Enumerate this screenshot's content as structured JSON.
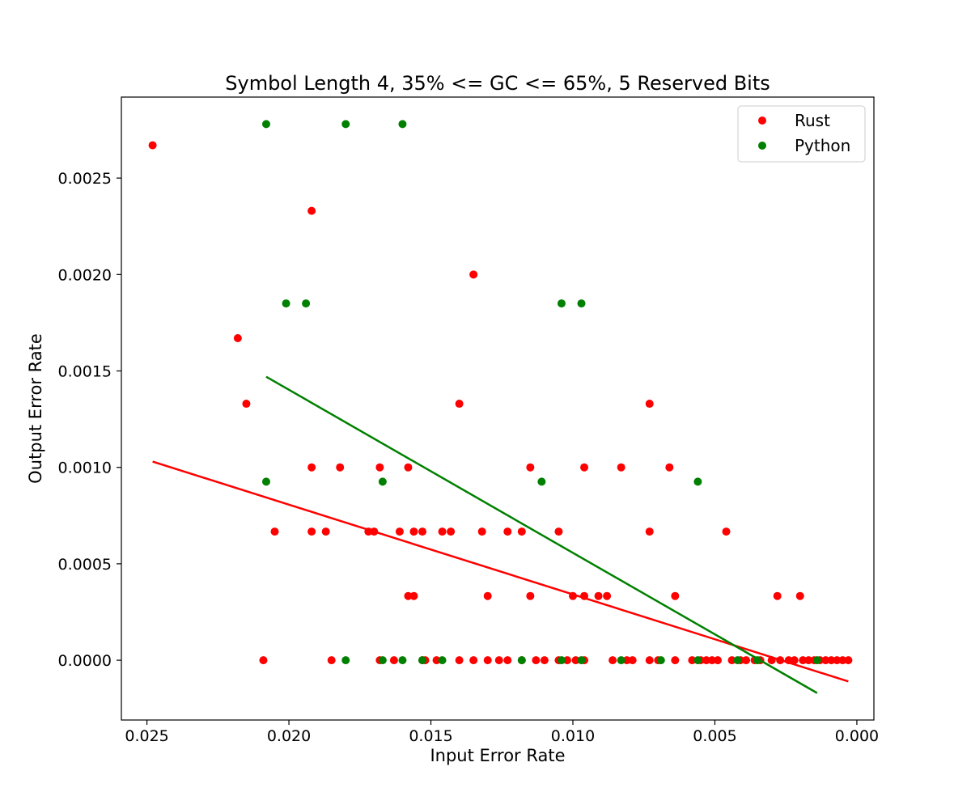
{
  "chart_data": {
    "type": "scatter",
    "title": "Symbol Length 4, 35% <= GC <= 65%, 5 Reserved Bits",
    "xlabel": "Input Error Rate",
    "ylabel": "Output Error Rate",
    "xlim": [
      0.0259,
      -0.0006
    ],
    "ylim": [
      -0.00031,
      0.00292
    ],
    "x_ticks": [
      0.025,
      0.02,
      0.015,
      0.01,
      0.005,
      0.0
    ],
    "x_tick_labels": [
      "0.025",
      "0.020",
      "0.015",
      "0.010",
      "0.005",
      "0.000"
    ],
    "y_ticks": [
      0.0,
      0.0005,
      0.001,
      0.0015,
      0.002,
      0.0025
    ],
    "y_tick_labels": [
      "0.0000",
      "0.0005",
      "0.0010",
      "0.0015",
      "0.0020",
      "0.0025"
    ],
    "legend_position": "top-right",
    "grid": false,
    "series": [
      {
        "name": "Rust",
        "color": "#ff0000",
        "points": [
          [
            0.0248,
            0.00267
          ],
          [
            0.0218,
            0.00167
          ],
          [
            0.0215,
            0.00133
          ],
          [
            0.0209,
            0.0
          ],
          [
            0.0205,
            0.000667
          ],
          [
            0.0192,
            0.00233
          ],
          [
            0.0192,
            0.001
          ],
          [
            0.0192,
            0.000667
          ],
          [
            0.0187,
            0.000667
          ],
          [
            0.0185,
            0.0
          ],
          [
            0.0182,
            0.001
          ],
          [
            0.0172,
            0.000667
          ],
          [
            0.017,
            0.000667
          ],
          [
            0.0168,
            0.001
          ],
          [
            0.0168,
            0.0
          ],
          [
            0.0163,
            0.0
          ],
          [
            0.0161,
            0.000667
          ],
          [
            0.0158,
            0.001
          ],
          [
            0.0158,
            0.000333
          ],
          [
            0.0156,
            0.000667
          ],
          [
            0.0156,
            0.000333
          ],
          [
            0.0153,
            0.000667
          ],
          [
            0.0153,
            0.0
          ],
          [
            0.0152,
            0.0
          ],
          [
            0.0148,
            0.0
          ],
          [
            0.0146,
            0.000667
          ],
          [
            0.0143,
            0.000667
          ],
          [
            0.014,
            0.00133
          ],
          [
            0.014,
            0.0
          ],
          [
            0.0135,
            0.002
          ],
          [
            0.0135,
            0.0
          ],
          [
            0.0132,
            0.000667
          ],
          [
            0.013,
            0.000333
          ],
          [
            0.013,
            0.0
          ],
          [
            0.0126,
            0.0
          ],
          [
            0.0123,
            0.000667
          ],
          [
            0.0123,
            0.0
          ],
          [
            0.0118,
            0.000667
          ],
          [
            0.0118,
            0.0
          ],
          [
            0.0115,
            0.001
          ],
          [
            0.0115,
            0.000333
          ],
          [
            0.0113,
            0.0
          ],
          [
            0.011,
            0.0
          ],
          [
            0.0105,
            0.000667
          ],
          [
            0.0105,
            0.0
          ],
          [
            0.0102,
            0.0
          ],
          [
            0.01,
            0.000333
          ],
          [
            0.0099,
            0.0
          ],
          [
            0.0096,
            0.001
          ],
          [
            0.0096,
            0.000333
          ],
          [
            0.0096,
            0.0
          ],
          [
            0.0091,
            0.000333
          ],
          [
            0.0088,
            0.000333
          ],
          [
            0.0086,
            0.0
          ],
          [
            0.0083,
            0.001
          ],
          [
            0.0081,
            0.0
          ],
          [
            0.0079,
            0.0
          ],
          [
            0.0073,
            0.00133
          ],
          [
            0.0073,
            0.000667
          ],
          [
            0.0073,
            0.0
          ],
          [
            0.007,
            0.0
          ],
          [
            0.0066,
            0.001
          ],
          [
            0.0064,
            0.000333
          ],
          [
            0.0064,
            0.0
          ],
          [
            0.0058,
            0.0
          ],
          [
            0.0055,
            0.0
          ],
          [
            0.0053,
            0.0
          ],
          [
            0.0051,
            0.0
          ],
          [
            0.0049,
            0.0
          ],
          [
            0.0046,
            0.000667
          ],
          [
            0.0044,
            0.0
          ],
          [
            0.0041,
            0.0
          ],
          [
            0.0039,
            0.0
          ],
          [
            0.0036,
            0.0
          ],
          [
            0.0034,
            0.0
          ],
          [
            0.003,
            0.0
          ],
          [
            0.0028,
            0.000333
          ],
          [
            0.0027,
            0.0
          ],
          [
            0.0024,
            0.0
          ],
          [
            0.0022,
            0.0
          ],
          [
            0.002,
            0.000333
          ],
          [
            0.0019,
            0.0
          ],
          [
            0.0017,
            0.0
          ],
          [
            0.0015,
            0.0
          ],
          [
            0.0013,
            0.0
          ],
          [
            0.0011,
            0.0
          ],
          [
            0.0009,
            0.0
          ],
          [
            0.0007,
            0.0
          ],
          [
            0.0005,
            0.0
          ],
          [
            0.0003,
            0.0
          ]
        ],
        "fit_line": [
          [
            0.0248,
            0.00103
          ],
          [
            0.0003,
            -0.00011
          ]
        ]
      },
      {
        "name": "Python",
        "color": "#008000",
        "points": [
          [
            0.0208,
            0.00278
          ],
          [
            0.0208,
            0.000926
          ],
          [
            0.0201,
            0.00185
          ],
          [
            0.0194,
            0.00185
          ],
          [
            0.018,
            0.00278
          ],
          [
            0.018,
            0.0
          ],
          [
            0.0167,
            0.000926
          ],
          [
            0.0167,
            0.0
          ],
          [
            0.016,
            0.00278
          ],
          [
            0.016,
            0.0
          ],
          [
            0.0153,
            0.0
          ],
          [
            0.0146,
            0.0
          ],
          [
            0.0118,
            0.0
          ],
          [
            0.0111,
            0.000926
          ],
          [
            0.0104,
            0.00185
          ],
          [
            0.0104,
            0.0
          ],
          [
            0.0097,
            0.00185
          ],
          [
            0.0097,
            0.0
          ],
          [
            0.0083,
            0.0
          ],
          [
            0.0069,
            0.0
          ],
          [
            0.0056,
            0.000926
          ],
          [
            0.0056,
            0.0
          ],
          [
            0.0042,
            0.0
          ],
          [
            0.0035,
            0.0
          ],
          [
            0.0014,
            0.0
          ]
        ],
        "fit_line": [
          [
            0.0208,
            0.00147
          ],
          [
            0.0014,
            -0.00017
          ]
        ]
      }
    ]
  }
}
